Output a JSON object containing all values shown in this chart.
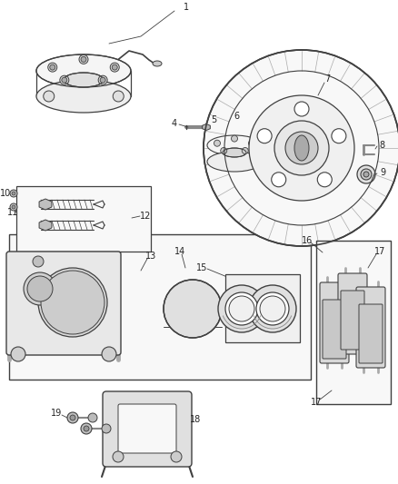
{
  "bg_color": "#ffffff",
  "fig_width": 4.38,
  "fig_height": 5.33,
  "dpi": 100,
  "lc": "#404040",
  "lc2": "#888888",
  "fs": 7.0,
  "label_color": "#222222"
}
